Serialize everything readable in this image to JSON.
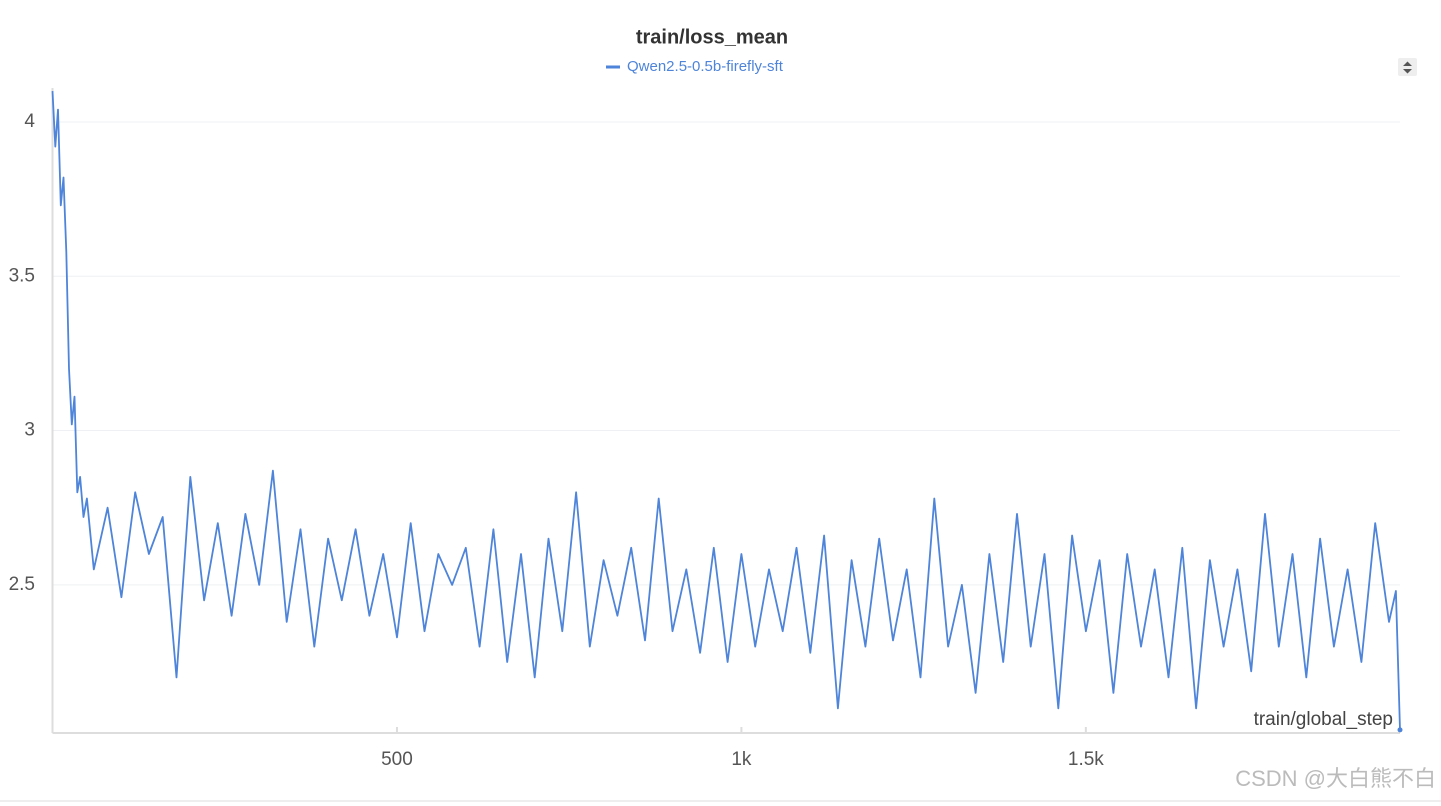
{
  "chart_data": {
    "type": "line",
    "title": "train/loss_mean",
    "xlabel": "train/global_step",
    "watermark": "CSDN @大白熊不白",
    "x": [
      0,
      4,
      8,
      12,
      16,
      20,
      24,
      28,
      32,
      36,
      40,
      45,
      50,
      60,
      80,
      100,
      120,
      140,
      160,
      180,
      200,
      220,
      240,
      260,
      280,
      300,
      320,
      340,
      360,
      380,
      400,
      420,
      440,
      460,
      480,
      500,
      520,
      540,
      560,
      580,
      600,
      620,
      640,
      660,
      680,
      700,
      720,
      740,
      760,
      780,
      800,
      820,
      840,
      860,
      880,
      900,
      920,
      940,
      960,
      980,
      1000,
      1020,
      1040,
      1060,
      1080,
      1100,
      1120,
      1140,
      1160,
      1180,
      1200,
      1220,
      1240,
      1260,
      1280,
      1300,
      1320,
      1340,
      1360,
      1380,
      1400,
      1420,
      1440,
      1460,
      1480,
      1500,
      1520,
      1540,
      1560,
      1580,
      1600,
      1620,
      1640,
      1660,
      1680,
      1700,
      1720,
      1740,
      1760,
      1780,
      1800,
      1820,
      1840,
      1860,
      1880,
      1900,
      1920,
      1940,
      1950,
      1956
    ],
    "series": [
      {
        "name": "Qwen2.5-0.5b-firefly-sft",
        "color": "#4e84d9",
        "values": [
          4.1,
          3.92,
          4.04,
          3.73,
          3.82,
          3.58,
          3.2,
          3.02,
          3.11,
          2.8,
          2.85,
          2.72,
          2.78,
          2.55,
          2.75,
          2.46,
          2.8,
          2.6,
          2.72,
          2.2,
          2.85,
          2.45,
          2.7,
          2.4,
          2.73,
          2.5,
          2.87,
          2.38,
          2.68,
          2.3,
          2.65,
          2.45,
          2.68,
          2.4,
          2.6,
          2.33,
          2.7,
          2.35,
          2.6,
          2.5,
          2.62,
          2.3,
          2.68,
          2.25,
          2.6,
          2.2,
          2.65,
          2.35,
          2.8,
          2.3,
          2.58,
          2.4,
          2.62,
          2.32,
          2.78,
          2.35,
          2.55,
          2.28,
          2.62,
          2.25,
          2.6,
          2.3,
          2.55,
          2.35,
          2.62,
          2.28,
          2.66,
          2.1,
          2.58,
          2.3,
          2.65,
          2.32,
          2.55,
          2.2,
          2.78,
          2.3,
          2.5,
          2.15,
          2.6,
          2.25,
          2.73,
          2.3,
          2.6,
          2.1,
          2.66,
          2.35,
          2.58,
          2.15,
          2.6,
          2.3,
          2.55,
          2.2,
          2.62,
          2.1,
          2.58,
          2.3,
          2.55,
          2.22,
          2.73,
          2.3,
          2.6,
          2.2,
          2.65,
          2.3,
          2.55,
          2.25,
          2.7,
          2.38,
          2.48,
          2.03
        ]
      }
    ],
    "xlim": [
      0,
      1956
    ],
    "ylim": [
      2.02,
      4.11
    ],
    "xticks": [
      500,
      {
        "value": 1000,
        "label": "1k"
      },
      {
        "value": 1500,
        "label": "1.5k"
      }
    ],
    "yticks": [
      2.5,
      3,
      3.5,
      4
    ],
    "grid": true
  }
}
